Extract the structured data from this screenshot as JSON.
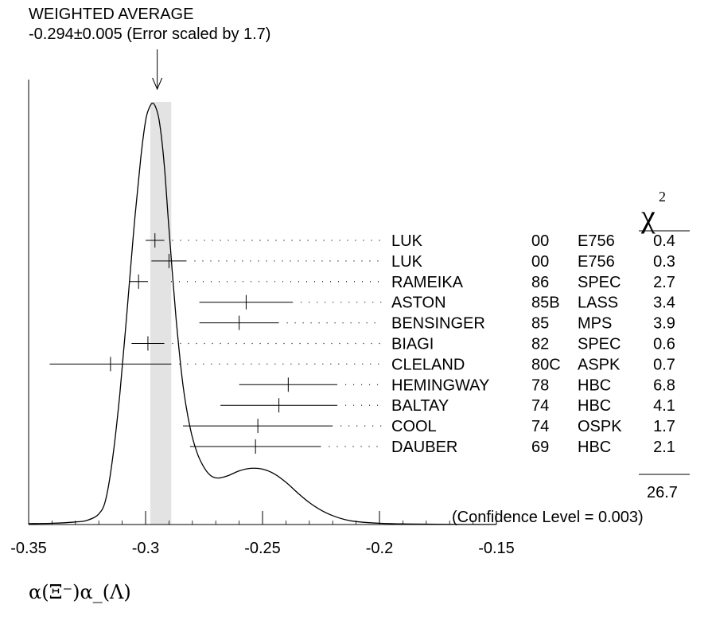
{
  "chart_data": {
    "type": "ideogram",
    "title": "WEIGHTED AVERAGE",
    "subtitle": "-0.294±0.005 (Error scaled by 1.7)",
    "xlabel": "α(Ξ⁻)α_(Λ)",
    "xlim": [
      -0.35,
      -0.15
    ],
    "x_ticks": [
      "-0.35",
      "-0.3",
      "-0.25",
      "-0.2",
      "-0.15"
    ],
    "weighted_average": -0.294,
    "average_error": 0.005,
    "band": [
      -0.298,
      -0.289
    ],
    "chi2_header": "χ",
    "chi2_exponent": "2",
    "measurements": [
      {
        "author": "LUK",
        "year": "00",
        "technique": "E756",
        "value": -0.296,
        "error": 0.004,
        "chi2": "0.4"
      },
      {
        "author": "LUK",
        "year": "00",
        "technique": "E756",
        "value": -0.29,
        "error": 0.0075,
        "chi2": "0.3"
      },
      {
        "author": "RAMEIKA",
        "year": "86",
        "technique": "SPEC",
        "value": -0.303,
        "error": 0.004,
        "chi2": "2.7"
      },
      {
        "author": "ASTON",
        "year": "85B",
        "technique": "LASS",
        "value": -0.257,
        "error": 0.02,
        "chi2": "3.4"
      },
      {
        "author": "BENSINGER",
        "year": "85",
        "technique": "MPS",
        "value": -0.26,
        "error": 0.017,
        "chi2": "3.9"
      },
      {
        "author": "BIAGI",
        "year": "82",
        "technique": "SPEC",
        "value": -0.299,
        "error": 0.007,
        "chi2": "0.6"
      },
      {
        "author": "CLELAND",
        "year": "80C",
        "technique": "ASPK",
        "value": -0.315,
        "error": 0.026,
        "chi2": "0.7"
      },
      {
        "author": "HEMINGWAY",
        "year": "78",
        "technique": "HBC",
        "value": -0.239,
        "error": 0.021,
        "chi2": "6.8"
      },
      {
        "author": "BALTAY",
        "year": "74",
        "technique": "HBC",
        "value": -0.243,
        "error": 0.025,
        "chi2": "4.1"
      },
      {
        "author": "COOL",
        "year": "74",
        "technique": "OSPK",
        "value": -0.252,
        "error": 0.032,
        "chi2": "1.7"
      },
      {
        "author": "DAUBER",
        "year": "69",
        "technique": "HBC",
        "value": -0.253,
        "error": 0.028,
        "chi2": "2.1"
      }
    ],
    "chi2_total": "26.7",
    "confidence_level": "(Confidence Level = 0.003)",
    "curve": [
      [
        -0.35,
        0.002
      ],
      [
        -0.34,
        0.003
      ],
      [
        -0.33,
        0.006
      ],
      [
        -0.325,
        0.01
      ],
      [
        -0.32,
        0.025
      ],
      [
        -0.317,
        0.06
      ],
      [
        -0.314,
        0.16
      ],
      [
        -0.311,
        0.31
      ],
      [
        -0.308,
        0.5
      ],
      [
        -0.305,
        0.7
      ],
      [
        -0.302,
        0.87
      ],
      [
        -0.3,
        0.955
      ],
      [
        -0.2985,
        0.985
      ],
      [
        -0.297,
        0.997
      ],
      [
        -0.2955,
        0.985
      ],
      [
        -0.294,
        0.95
      ],
      [
        -0.292,
        0.85
      ],
      [
        -0.29,
        0.7
      ],
      [
        -0.287,
        0.49
      ],
      [
        -0.284,
        0.33
      ],
      [
        -0.281,
        0.23
      ],
      [
        -0.278,
        0.17
      ],
      [
        -0.275,
        0.135
      ],
      [
        -0.272,
        0.115
      ],
      [
        -0.269,
        0.11
      ],
      [
        -0.265,
        0.115
      ],
      [
        -0.26,
        0.127
      ],
      [
        -0.255,
        0.133
      ],
      [
        -0.25,
        0.131
      ],
      [
        -0.245,
        0.12
      ],
      [
        -0.24,
        0.1
      ],
      [
        -0.235,
        0.075
      ],
      [
        -0.23,
        0.052
      ],
      [
        -0.225,
        0.034
      ],
      [
        -0.22,
        0.021
      ],
      [
        -0.215,
        0.012
      ],
      [
        -0.21,
        0.007
      ],
      [
        -0.2,
        0.003
      ],
      [
        -0.19,
        0.0015
      ],
      [
        -0.175,
        0.0005
      ],
      [
        -0.15,
        0.0001
      ]
    ]
  }
}
